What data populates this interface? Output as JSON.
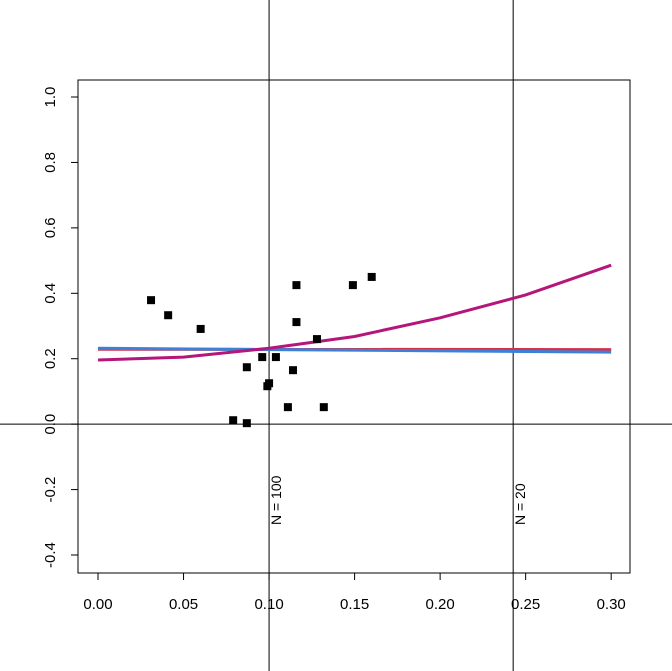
{
  "chart_data": {
    "type": "scatter",
    "xlim": [
      -0.0117,
      0.311
    ],
    "ylim": [
      -0.455,
      1.052
    ],
    "xticks": [
      {
        "value": 0,
        "label": "0.00"
      },
      0.05,
      {
        "value": 0.1,
        "label": "0.10"
      },
      0.15,
      {
        "value": 0.2,
        "label": "0.20"
      },
      0.25,
      {
        "value": 0.3,
        "label": "0.30"
      }
    ],
    "yticks": [
      -0.4,
      -0.2,
      {
        "value": 0,
        "label": "0.0"
      },
      0.2,
      0.4,
      0.6,
      0.8,
      {
        "value": 1,
        "label": "1.0"
      }
    ],
    "points": {
      "color": "#000000",
      "x": [
        0.031,
        0.041,
        0.06,
        0.079,
        0.087,
        0.087,
        0.096,
        0.099,
        0.1,
        0.104,
        0.111,
        0.114,
        0.116,
        0.116,
        0.128,
        0.132,
        0.149,
        0.16
      ],
      "values": [
        0.379,
        0.333,
        0.291,
        0.012,
        0.174,
        0.003,
        0.205,
        0.116,
        0.125,
        0.205,
        0.052,
        0.165,
        0.425,
        0.312,
        0.26,
        0.052,
        0.425,
        0.45
      ]
    },
    "series": [
      {
        "color": "#d9304a",
        "x": [
          0,
          0.3
        ],
        "values": [
          0.229,
          0.228
        ]
      },
      {
        "color": "#3b82d6",
        "x": [
          0,
          0.3
        ],
        "values": [
          0.232,
          0.22
        ]
      },
      {
        "color": "#b5167a",
        "x": [
          0,
          0.05,
          0.1,
          0.15,
          0.2,
          0.25,
          0.3
        ],
        "values": [
          0.196,
          0.205,
          0.232,
          0.268,
          0.325,
          0.395,
          0.486
        ]
      }
    ],
    "hline": 0,
    "vlines": [
      {
        "x": 0.1,
        "label": "N = 100"
      },
      {
        "x": 0.2427,
        "label": "N = 20"
      }
    ]
  }
}
